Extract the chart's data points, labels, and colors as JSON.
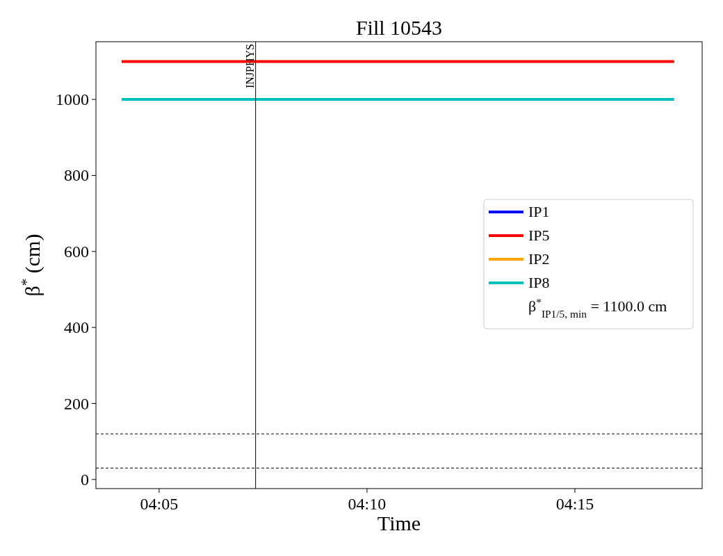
{
  "chart_data": {
    "type": "line",
    "title": "Fill 10543",
    "xlabel": "Time",
    "ylabel": "β$^{*}$ (cm)",
    "xlim": [
      4.058,
      4.301
    ],
    "xticks": [
      {
        "value": 4.08333,
        "label": "04:05"
      },
      {
        "value": 4.16667,
        "label": "04:10"
      },
      {
        "value": 4.25,
        "label": "04:15"
      }
    ],
    "ylim": [
      -24,
      1152
    ],
    "yticks": [
      0,
      200,
      400,
      600,
      800,
      1000
    ],
    "x": [
      4.0683,
      4.2898
    ],
    "series": [
      {
        "name": "IP1",
        "color": "#0000ff",
        "values": [
          null,
          null
        ]
      },
      {
        "name": "IP5",
        "color": "#ff0000",
        "values": [
          1100,
          1100
        ]
      },
      {
        "name": "IP2",
        "color": "#ffa500",
        "values": [
          null,
          null
        ]
      },
      {
        "name": "IP8",
        "color": "#00bfbf",
        "values": [
          1000,
          1000
        ]
      }
    ],
    "ref_lines": [
      {
        "axis": "x",
        "value": 4.122,
        "label": "INJPHYS",
        "color": "#000000",
        "line_style": "solid"
      },
      {
        "axis": "y",
        "value": 120,
        "color": "#000000",
        "line_style": "dashed"
      },
      {
        "axis": "y",
        "value": 30,
        "color": "#000000",
        "line_style": "dashed"
      }
    ],
    "annotations": [
      "β$^{*}$$_{IP1/5, min}$ = 1100.0 cm"
    ],
    "legend": "right",
    "grid": false,
    "line_style": "solid"
  }
}
